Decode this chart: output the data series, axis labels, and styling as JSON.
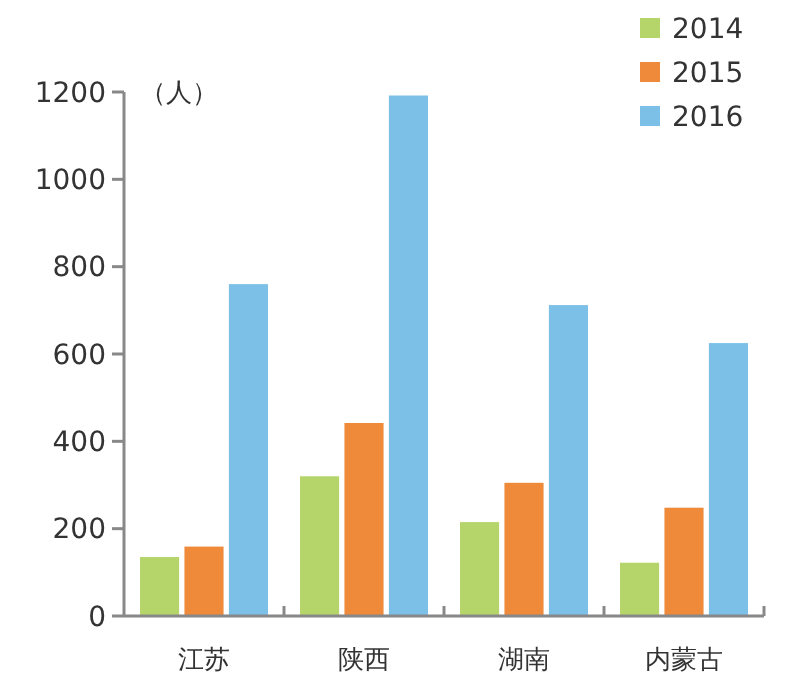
{
  "chart_data": {
    "type": "bar",
    "ylabel": "（人）",
    "categories": [
      "江苏",
      "陕西",
      "湖南",
      "内蒙古"
    ],
    "series": [
      {
        "name": "2014",
        "color": "#b5d56a",
        "values": [
          135,
          320,
          215,
          122
        ]
      },
      {
        "name": "2015",
        "color": "#ee8a3a",
        "values": [
          159,
          442,
          305,
          248
        ]
      },
      {
        "name": "2016",
        "color": "#7cc0e8",
        "values": [
          760,
          1192,
          712,
          625
        ]
      }
    ],
    "ylim": [
      0,
      1200
    ],
    "yticks": [
      0,
      200,
      400,
      600,
      800,
      1000,
      1200
    ],
    "grid": false,
    "legend": "top right"
  }
}
